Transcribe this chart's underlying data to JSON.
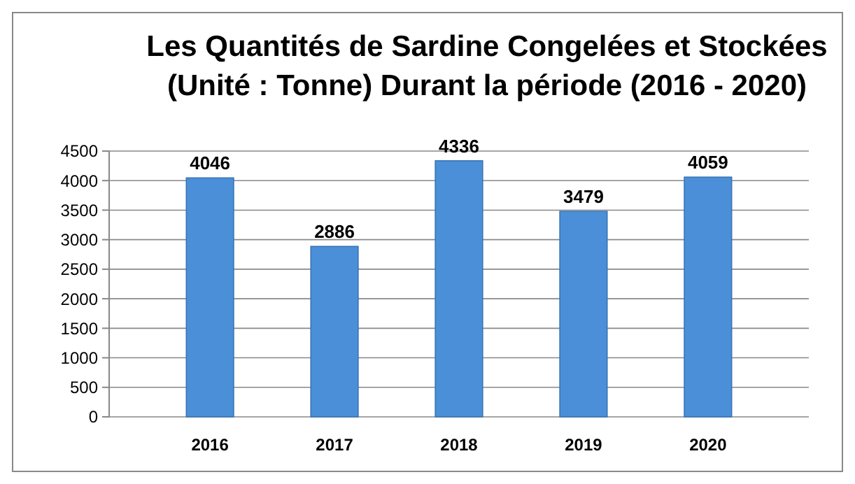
{
  "chart_data": {
    "type": "bar",
    "title": "Les Quantités de Sardine Congelées et Stockées (Unité : Tonne) Durant la période (2016 - 2020)",
    "categories": [
      "2016",
      "2017",
      "2018",
      "2019",
      "2020"
    ],
    "values": [
      4046,
      2886,
      4336,
      3479,
      4059
    ],
    "color": "#4a8fd8",
    "ylim": [
      0,
      4500
    ],
    "yticks": [
      0,
      500,
      1000,
      1500,
      2000,
      2500,
      3000,
      3500,
      4000,
      4500
    ],
    "grid": "y",
    "data_labels": true
  }
}
